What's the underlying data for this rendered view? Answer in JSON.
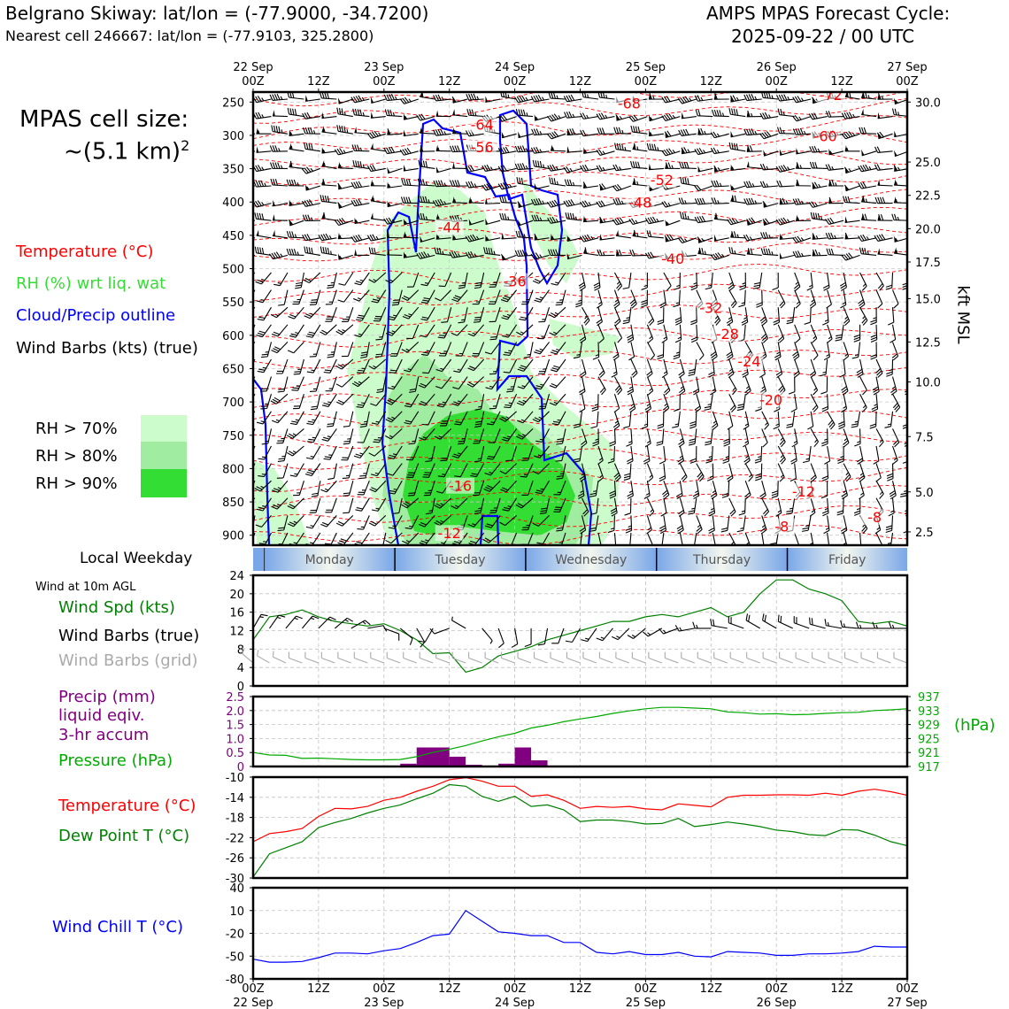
{
  "header": {
    "station_line": "Belgrano Skiway: lat/lon = (-77.9000, -34.7200)",
    "cell_line": "Nearest cell 246667: lat/lon = (-77.9103, 325.2800)",
    "cycle_title": "AMPS MPAS Forecast Cycle:",
    "cycle_time": "2025-09-22 / 00 UTC"
  },
  "cell_size": {
    "line1": "MPAS cell size:",
    "line2": "~(5.1 km)",
    "exponent": "2"
  },
  "legend_top": {
    "temperature": "Temperature (°C)",
    "rh": "RH (%) wrt liq. wat",
    "cloud": "Cloud/Precip outline",
    "wind": "Wind Barbs (kts) (true)",
    "rh70": "RH > 70%",
    "rh80": "RH > 80%",
    "rh90": "RH > 90%"
  },
  "colors": {
    "temperature": "#ff0000",
    "rh_label": "#33dd33",
    "cloud": "#0000ff",
    "rh70": "#ccfccc",
    "rh80": "#a0eca0",
    "rh90": "#33dd33",
    "wind_speed": "#008000",
    "grid_barbs": "#aaaaaa",
    "precip": "#800080",
    "pressure": "#00aa00",
    "dewpoint": "#008000",
    "windchill": "#0000ff"
  },
  "time_axis": {
    "top_labels": [
      {
        "t": 0,
        "l1": "22 Sep",
        "l2": "00Z"
      },
      {
        "t": 12,
        "l1": "",
        "l2": "12Z"
      },
      {
        "t": 24,
        "l1": "23 Sep",
        "l2": "00Z"
      },
      {
        "t": 36,
        "l1": "",
        "l2": "12Z"
      },
      {
        "t": 48,
        "l1": "24 Sep",
        "l2": "00Z"
      },
      {
        "t": 60,
        "l1": "",
        "l2": "12Z"
      },
      {
        "t": 72,
        "l1": "25 Sep",
        "l2": "00Z"
      },
      {
        "t": 84,
        "l1": "",
        "l2": "12Z"
      },
      {
        "t": 96,
        "l1": "26 Sep",
        "l2": "00Z"
      },
      {
        "t": 108,
        "l1": "",
        "l2": "12Z"
      },
      {
        "t": 120,
        "l1": "27 Sep",
        "l2": "00Z"
      }
    ],
    "bottom_labels": [
      {
        "t": 0,
        "l1": "00Z",
        "l2": "22 Sep"
      },
      {
        "t": 12,
        "l1": "12Z",
        "l2": ""
      },
      {
        "t": 24,
        "l1": "00Z",
        "l2": "23 Sep"
      },
      {
        "t": 36,
        "l1": "12Z",
        "l2": ""
      },
      {
        "t": 48,
        "l1": "00Z",
        "l2": "24 Sep"
      },
      {
        "t": 60,
        "l1": "12Z",
        "l2": ""
      },
      {
        "t": 72,
        "l1": "00Z",
        "l2": "25 Sep"
      },
      {
        "t": 84,
        "l1": "12Z",
        "l2": ""
      },
      {
        "t": 96,
        "l1": "00Z",
        "l2": "26 Sep"
      },
      {
        "t": 108,
        "l1": "12Z",
        "l2": ""
      },
      {
        "t": 120,
        "l1": "00Z",
        "l2": "27 Sep"
      }
    ]
  },
  "weekday": {
    "label": "Local Weekday",
    "days": [
      {
        "name": "Monday",
        "start": 2,
        "end": 26
      },
      {
        "name": "Tuesday",
        "start": 26,
        "end": 50
      },
      {
        "name": "Wednesday",
        "start": 50,
        "end": 74
      },
      {
        "name": "Thursday",
        "start": 74,
        "end": 98
      },
      {
        "name": "Friday",
        "start": 98,
        "end": 120
      }
    ]
  },
  "wind_legend": {
    "title": "Wind at 10m AGL",
    "speed": "Wind Spd (kts)",
    "barbs_true": "Wind Barbs (true)",
    "barbs_grid": "Wind Barbs (grid)"
  },
  "precip_legend": {
    "line1": "Precip (mm)",
    "line2": "liquid eqiv.",
    "line3": "3-hr accum",
    "pressure": "Pressure (hPa)",
    "hpa_unit": "(hPa)"
  },
  "temp_legend": {
    "temperature": "Temperature (°C)",
    "dewpoint": "Dew Point T (°C)"
  },
  "chill_legend": {
    "label": "Wind Chill T (°C)"
  },
  "right_axis_label": "kft MSL",
  "chart_data": [
    {
      "id": "cross_section",
      "type": "heatmap",
      "x_range": [
        0,
        120
      ],
      "y_label_left": "Pressure (hPa)",
      "y_ticks_left": [
        250,
        300,
        350,
        400,
        450,
        500,
        550,
        600,
        650,
        700,
        750,
        800,
        850,
        900
      ],
      "ylim": [
        235,
        915
      ],
      "y_ticks_right": [
        {
          "label": "30.0",
          "p": 250
        },
        {
          "label": "25.0",
          "p": 340
        },
        {
          "label": "22.5",
          "p": 390
        },
        {
          "label": "20.0",
          "p": 440
        },
        {
          "label": "17.5",
          "p": 490
        },
        {
          "label": "15.0",
          "p": 545
        },
        {
          "label": "12.5",
          "p": 610
        },
        {
          "label": "10.0",
          "p": 670
        },
        {
          "label": "7.5",
          "p": 752
        },
        {
          "label": "5.0",
          "p": 835
        },
        {
          "label": "2.5",
          "p": 895
        }
      ],
      "temperature_labels": [
        {
          "t": 69,
          "p": 253,
          "v": "-68"
        },
        {
          "t": 106,
          "p": 240,
          "v": "-72"
        },
        {
          "t": 42,
          "p": 285,
          "v": "-64"
        },
        {
          "t": 105,
          "p": 302,
          "v": "-60"
        },
        {
          "t": 42,
          "p": 319,
          "v": "-56"
        },
        {
          "t": 75,
          "p": 368,
          "v": "-52"
        },
        {
          "t": 71,
          "p": 402,
          "v": "-48"
        },
        {
          "t": 36,
          "p": 439,
          "v": "-44"
        },
        {
          "t": 77,
          "p": 486,
          "v": "-40"
        },
        {
          "t": 48,
          "p": 520,
          "v": "-36"
        },
        {
          "t": 84,
          "p": 560,
          "v": "-32"
        },
        {
          "t": 87,
          "p": 599,
          "v": "-28"
        },
        {
          "t": 91,
          "p": 640,
          "v": "-24"
        },
        {
          "t": 95,
          "p": 698,
          "v": "-20"
        },
        {
          "t": 38,
          "p": 827,
          "v": "-16"
        },
        {
          "t": 101,
          "p": 835,
          "v": "-12"
        },
        {
          "t": 36,
          "p": 898,
          "v": "-12"
        },
        {
          "t": 114,
          "p": 874,
          "v": "-8"
        },
        {
          "t": 97,
          "p": 888,
          "v": "-8"
        }
      ],
      "note": "Green shading = RH thresholds, blue = cloud/precip outline, red dashed = isotherms, barbs = wind (kts)"
    },
    {
      "id": "wind10m",
      "type": "line",
      "title": "Wind at 10m AGL",
      "ylabel": "Wind Spd (kts)",
      "ylim": [
        0,
        24
      ],
      "y_ticks": [
        0,
        4,
        8,
        12,
        16,
        20,
        24
      ],
      "x": [
        0,
        3,
        6,
        9,
        12,
        15,
        18,
        21,
        24,
        27,
        30,
        33,
        36,
        39,
        42,
        45,
        48,
        51,
        54,
        57,
        60,
        63,
        66,
        69,
        72,
        75,
        78,
        81,
        84,
        87,
        90,
        93,
        96,
        99,
        102,
        105,
        108,
        111,
        114,
        117,
        120
      ],
      "values": [
        10,
        15,
        15.5,
        16.5,
        15,
        14,
        13.5,
        13,
        13.5,
        12,
        10,
        7,
        7.2,
        3,
        4,
        6.5,
        7.5,
        8.5,
        10,
        11,
        12,
        13,
        14,
        14,
        15,
        15.5,
        15,
        16,
        17,
        15,
        16,
        20,
        23,
        23,
        21,
        20,
        18.5,
        14,
        13.5,
        14,
        13
      ],
      "barb_speed_true": [
        15,
        14,
        15,
        14,
        14,
        13,
        13,
        12,
        12,
        11,
        10,
        9,
        8,
        7,
        7,
        8,
        9,
        10,
        11,
        12,
        12,
        13,
        13,
        14,
        14,
        15,
        15,
        16,
        17,
        18,
        19,
        20,
        21,
        20,
        19,
        18,
        17,
        15,
        14,
        14,
        13
      ],
      "barb_dir_true": [
        30,
        35,
        40,
        40,
        45,
        50,
        60,
        80,
        110,
        130,
        150,
        210,
        250,
        300,
        140,
        160,
        170,
        180,
        190,
        200,
        210,
        215,
        220,
        225,
        230,
        240,
        250,
        260,
        270,
        280,
        290,
        300,
        300,
        295,
        290,
        285,
        280,
        275,
        270,
        270,
        270
      ],
      "barb_speed_grid": [
        8,
        8,
        8,
        8,
        8,
        8,
        8,
        8,
        8,
        8,
        8,
        8,
        8,
        8,
        8,
        8,
        8,
        8,
        8,
        8,
        8,
        8,
        8,
        8,
        8,
        8,
        8,
        8,
        8,
        8,
        8,
        8,
        8,
        8,
        8,
        8,
        8,
        8,
        8,
        8,
        8
      ],
      "barb_dir_grid": [
        310,
        300,
        295,
        290,
        290,
        290,
        290,
        290,
        290,
        290,
        290,
        290,
        290,
        290,
        290,
        290,
        290,
        290,
        290,
        290,
        290,
        290,
        290,
        290,
        290,
        290,
        290,
        290,
        290,
        290,
        290,
        290,
        290,
        290,
        290,
        290,
        290,
        290,
        290,
        290,
        290
      ]
    },
    {
      "id": "precip_pressure",
      "type": "bar",
      "ylabel": "Precip (mm)",
      "ylim": [
        0,
        2.5
      ],
      "y_ticks": [
        "0",
        "0.5",
        "1.0",
        "1.5",
        "2.0",
        "2.5"
      ],
      "precip": [
        {
          "t0": 27,
          "t1": 30,
          "v": 0.1
        },
        {
          "t0": 30,
          "t1": 36,
          "v": 0.68
        },
        {
          "t0": 36,
          "t1": 39,
          "v": 0.35
        },
        {
          "t0": 39,
          "t1": 42,
          "v": 0.06
        },
        {
          "t0": 45,
          "t1": 48,
          "v": 0.1
        },
        {
          "t0": 48,
          "t1": 51,
          "v": 0.68
        },
        {
          "t0": 51,
          "t1": 54,
          "v": 0.22
        }
      ],
      "pressure_ylim": [
        917,
        937
      ],
      "pressure_ticks": [
        917,
        921,
        925,
        929,
        933,
        937
      ],
      "pressure_x": [
        0,
        3,
        6,
        9,
        12,
        15,
        18,
        21,
        24,
        27,
        30,
        33,
        36,
        39,
        42,
        45,
        48,
        51,
        54,
        57,
        60,
        63,
        66,
        69,
        72,
        75,
        78,
        81,
        84,
        87,
        90,
        93,
        96,
        99,
        102,
        105,
        108,
        111,
        114,
        117,
        120
      ],
      "pressure": [
        921,
        920.3,
        920.2,
        919.3,
        919.4,
        919.2,
        919,
        918.9,
        918.9,
        919,
        919.8,
        921,
        921.9,
        923,
        924.3,
        925.5,
        926.5,
        928,
        928.8,
        929.8,
        930.6,
        931.3,
        932.2,
        932.9,
        933.5,
        933.9,
        933.9,
        933.7,
        933.5,
        932.6,
        932.4,
        932,
        932.1,
        931.8,
        931.9,
        932.2,
        932.4,
        932.5,
        933,
        933.2,
        933.5
      ]
    },
    {
      "id": "temperature_dewpoint",
      "type": "line",
      "ylim": [
        -30,
        -10
      ],
      "y_ticks": [
        -30,
        -26,
        -22,
        -18,
        -14,
        -10
      ],
      "x": [
        0,
        3,
        6,
        9,
        12,
        15,
        18,
        21,
        24,
        27,
        30,
        33,
        36,
        39,
        42,
        45,
        48,
        51,
        54,
        57,
        60,
        63,
        66,
        69,
        72,
        75,
        78,
        81,
        84,
        87,
        90,
        93,
        96,
        99,
        102,
        105,
        108,
        111,
        114,
        117,
        120
      ],
      "series": [
        {
          "name": "Temperature (°C)",
          "values": [
            -22.8,
            -21.2,
            -20.8,
            -20.2,
            -17.8,
            -16.2,
            -16.3,
            -15.8,
            -14.6,
            -14,
            -12.8,
            -11.8,
            -10.5,
            -10.1,
            -10.8,
            -11.8,
            -11.8,
            -13.8,
            -13.5,
            -14.6,
            -16.2,
            -15.8,
            -16,
            -15.8,
            -16.3,
            -16.5,
            -15.3,
            -15.6,
            -15.9,
            -14,
            -13.6,
            -13.6,
            -13.5,
            -13.5,
            -13.6,
            -13.2,
            -13.6,
            -12.8,
            -12.4,
            -12.9,
            -13.6
          ]
        },
        {
          "name": "Dew Point T (°C)",
          "values": [
            -29.8,
            -25.2,
            -24,
            -22.8,
            -20,
            -19,
            -18.2,
            -17.1,
            -16.2,
            -15.5,
            -14.3,
            -13.2,
            -11.5,
            -11.8,
            -13.8,
            -14.8,
            -13.8,
            -15.8,
            -15.5,
            -16.5,
            -18.8,
            -18.5,
            -18.5,
            -18.8,
            -19.3,
            -19.2,
            -18.2,
            -19.8,
            -19.4,
            -18.9,
            -19.3,
            -19.8,
            -20.5,
            -20.8,
            -21.4,
            -21.6,
            -20.4,
            -20.5,
            -21.5,
            -22.8,
            -23.6
          ]
        }
      ]
    },
    {
      "id": "wind_chill",
      "type": "line",
      "ylabel": "Wind Chill T (°C)",
      "ylim": [
        -80,
        40
      ],
      "y_ticks": [
        -80,
        -50,
        -20,
        10,
        40
      ],
      "x": [
        0,
        3,
        6,
        9,
        12,
        15,
        18,
        21,
        24,
        27,
        30,
        33,
        36,
        39,
        42,
        45,
        48,
        51,
        54,
        57,
        60,
        63,
        66,
        69,
        72,
        75,
        78,
        81,
        84,
        87,
        90,
        93,
        96,
        99,
        102,
        105,
        108,
        111,
        114,
        117,
        120
      ],
      "values": [
        -54,
        -58,
        -58,
        -57,
        -52,
        -46,
        -46,
        -47,
        -43,
        -40,
        -32,
        -23,
        -21,
        10,
        -4,
        -18,
        -20,
        -23,
        -23,
        -32,
        -32,
        -45,
        -47,
        -44,
        -48,
        -48,
        -45,
        -50,
        -51,
        -44,
        -45,
        -46,
        -49,
        -49,
        -47,
        -47,
        -46,
        -44,
        -37,
        -38,
        -38
      ]
    }
  ]
}
